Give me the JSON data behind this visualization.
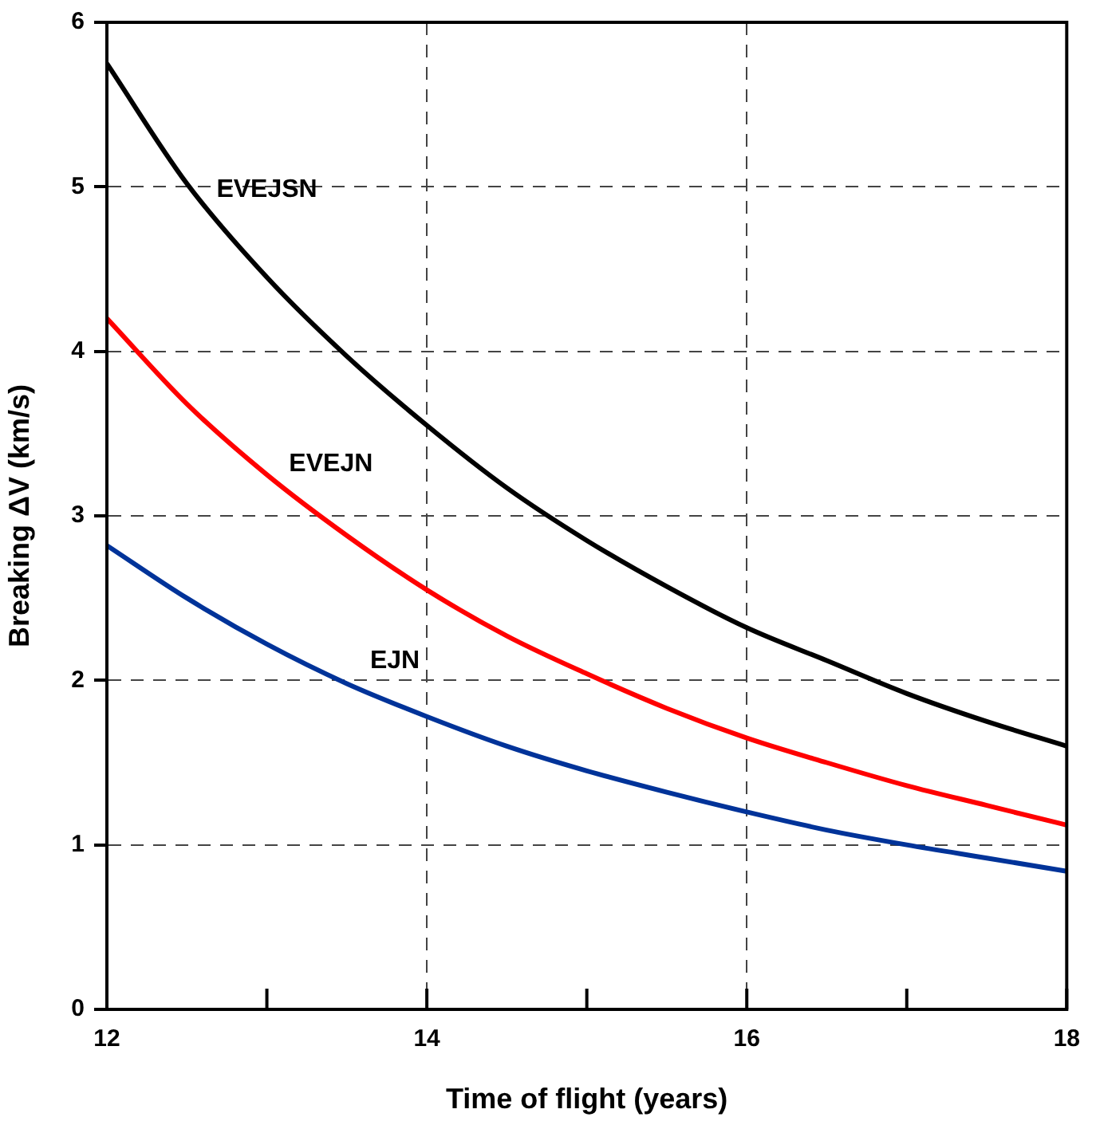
{
  "chart_data": {
    "type": "line",
    "xlabel": "Time of flight (years)",
    "ylabel": "Breaking ΔV (km/s)",
    "x": [
      12,
      12.5,
      13,
      13.5,
      14,
      14.5,
      15,
      15.5,
      16,
      16.5,
      17,
      17.5,
      18
    ],
    "series": [
      {
        "name": "EVEJSN",
        "color": "#000000",
        "values": [
          5.75,
          5.02,
          4.45,
          3.97,
          3.55,
          3.17,
          2.85,
          2.57,
          2.32,
          2.12,
          1.92,
          1.75,
          1.6
        ]
      },
      {
        "name": "EVEJN",
        "color": "#ff0000",
        "values": [
          4.2,
          3.68,
          3.25,
          2.88,
          2.55,
          2.27,
          2.04,
          1.83,
          1.65,
          1.5,
          1.36,
          1.24,
          1.12
        ]
      },
      {
        "name": "EJN",
        "color": "#003399",
        "values": [
          2.82,
          2.5,
          2.22,
          1.98,
          1.78,
          1.6,
          1.45,
          1.32,
          1.2,
          1.09,
          1.0,
          0.92,
          0.84
        ]
      }
    ],
    "xlim": [
      12,
      18
    ],
    "xticks": [
      12,
      {
        "value": 13,
        "label": null
      },
      14,
      {
        "value": 15,
        "label": null
      },
      16,
      {
        "value": 17,
        "label": null
      },
      18
    ],
    "ylim": [
      0,
      6
    ],
    "yticks": [
      0,
      1,
      2,
      3,
      4,
      5,
      6
    ],
    "grid": true,
    "legend": false,
    "marker": "none",
    "line_style": "solid"
  }
}
